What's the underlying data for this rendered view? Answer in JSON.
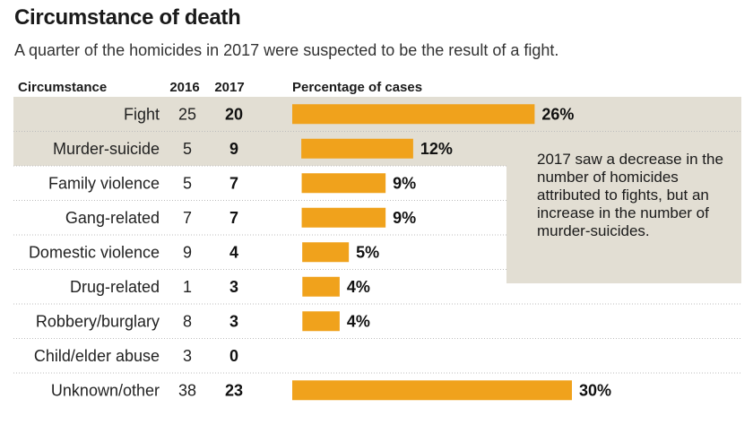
{
  "header": {
    "title": "Circumstance of death",
    "subtitle": "A quarter of the homicides in 2017 were suspected to be the result of a fight."
  },
  "columns": {
    "circumstance": "Circumstance",
    "y2016": "2016",
    "y2017": "2017",
    "percentage": "Percentage of cases"
  },
  "note": {
    "text": "2017 saw a  decrease in the number of homicides attributed to fights, but an increase in the number of murder-suicides."
  },
  "colors": {
    "bar": "#f0a21c",
    "highlight": "#e2ded3",
    "divider": "#bdbdbd"
  },
  "chart_data": {
    "type": "bar",
    "title": "Circumstance of death",
    "categories": [
      "Fight",
      "Murder-suicide",
      "Family violence",
      "Gang-related",
      "Domestic violence",
      "Drug-related",
      "Robbery/burglary",
      "Child/elder abuse",
      "Unknown/other"
    ],
    "series": [
      {
        "name": "2016",
        "values": [
          25,
          5,
          5,
          7,
          9,
          1,
          8,
          3,
          38
        ]
      },
      {
        "name": "2017",
        "values": [
          20,
          9,
          7,
          7,
          4,
          3,
          3,
          0,
          23
        ]
      }
    ],
    "percentages": [
      26,
      12,
      9,
      9,
      5,
      4,
      4,
      0,
      30
    ],
    "percent_labels": [
      "26%",
      "12%",
      "9%",
      "9%",
      "5%",
      "4%",
      "4%",
      "",
      "30%"
    ],
    "highlighted_rows": [
      "Fight",
      "Murder-suicide"
    ],
    "grid": false
  }
}
